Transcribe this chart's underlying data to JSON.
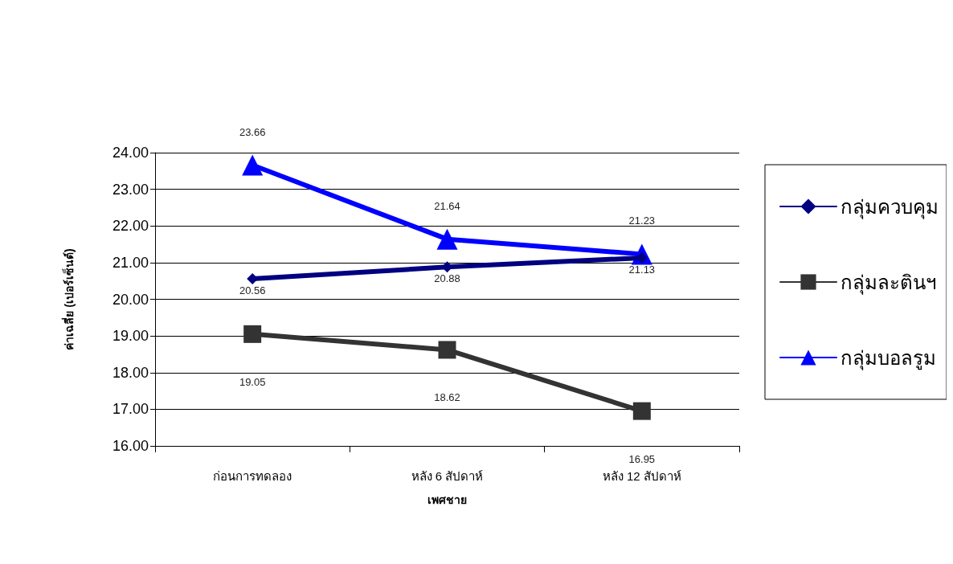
{
  "chart_data": {
    "type": "line",
    "xlabel": "เพศชาย",
    "ylabel": "ค่าเฉลี่ย (เปอร์เซ็นต์)",
    "categories": [
      "ก่อนการทดลอง",
      "หลัง 6 สัปดาห์",
      "หลัง 12 สัปดาห์"
    ],
    "series": [
      {
        "name": "กลุ่มควบคุม",
        "color": "#000080",
        "marker": "diamond",
        "values": [
          20.56,
          20.88,
          21.13
        ]
      },
      {
        "name": "กลุ่มละตินฯ",
        "color": "#333333",
        "marker": "square",
        "values": [
          19.05,
          18.62,
          16.95
        ]
      },
      {
        "name": "กลุ่มบอลรูม",
        "color": "#0000ff",
        "marker": "triangle",
        "values": [
          23.66,
          21.64,
          21.23
        ]
      }
    ],
    "ylim": [
      16,
      24
    ],
    "yticks": [
      {
        "value": 16,
        "label": "16.00"
      },
      {
        "value": 17,
        "label": "17.00"
      },
      {
        "value": 18,
        "label": "18.00"
      },
      {
        "value": 19,
        "label": "19.00"
      },
      {
        "value": 20,
        "label": "20.00"
      },
      {
        "value": 21,
        "label": "21.00"
      },
      {
        "value": 22,
        "label": "22.00"
      },
      {
        "value": 23,
        "label": "23.00"
      },
      {
        "value": 24,
        "label": "24.00"
      }
    ],
    "grid": "y",
    "legend": "right",
    "data_labels": true,
    "line_style": "solid"
  }
}
